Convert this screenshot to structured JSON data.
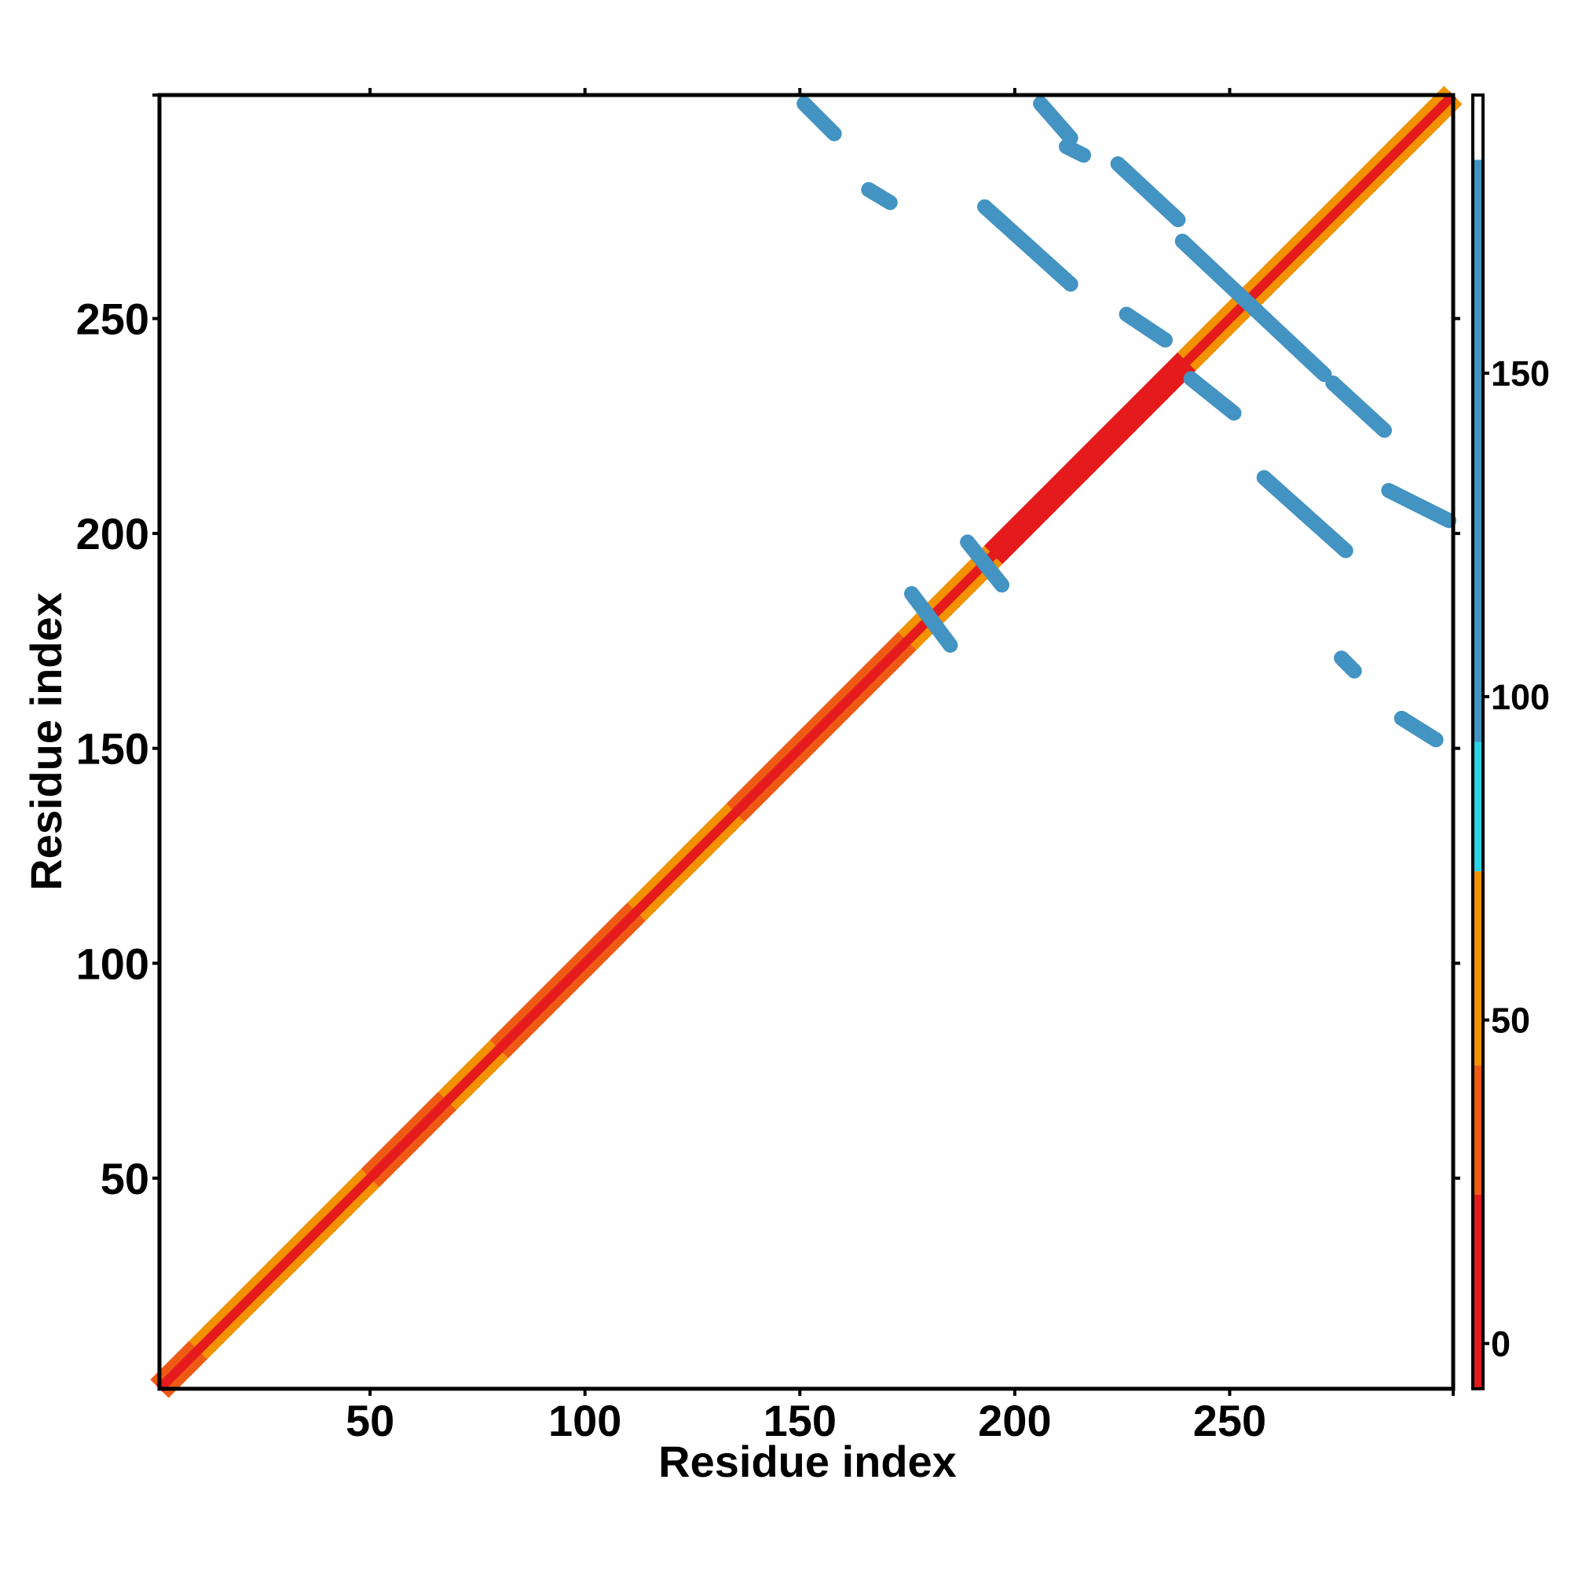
{
  "chart_data": {
    "type": "heatmap",
    "title": "",
    "xlabel": "Residue index",
    "ylabel": "Residue index",
    "xlim": [
      1,
      302
    ],
    "ylim": [
      1,
      302
    ],
    "x_ticks": [
      50,
      100,
      150,
      200,
      250
    ],
    "y_ticks": [
      50,
      100,
      150,
      200,
      250
    ],
    "colorbar": {
      "ticks": [
        0,
        50,
        100,
        150
      ],
      "range": [
        -7,
        193
      ],
      "bands": [
        {
          "from": -7,
          "to": 23,
          "color": "#e41a1c"
        },
        {
          "from": 23,
          "to": 43,
          "color": "#ee5a14"
        },
        {
          "from": 43,
          "to": 73,
          "color": "#f39200"
        },
        {
          "from": 73,
          "to": 93,
          "color": "#29d4e4"
        },
        {
          "from": 93,
          "to": 183,
          "color": "#4393c3"
        },
        {
          "from": 183,
          "to": 193,
          "color": "#ffffff"
        }
      ]
    },
    "diagonal": {
      "start": 1,
      "end": 302,
      "value": 0
    },
    "diagonal_regions": [
      {
        "from": 1,
        "to": 10,
        "value": 40
      },
      {
        "from": 10,
        "to": 50,
        "value": 55
      },
      {
        "from": 50,
        "to": 68,
        "value": 30
      },
      {
        "from": 68,
        "to": 80,
        "value": 55
      },
      {
        "from": 80,
        "to": 112,
        "value": 35
      },
      {
        "from": 112,
        "to": 135,
        "value": 55
      },
      {
        "from": 135,
        "to": 175,
        "value": 25
      },
      {
        "from": 175,
        "to": 195,
        "value": 60
      },
      {
        "from": 195,
        "to": 240,
        "value": 20
      },
      {
        "from": 240,
        "to": 302,
        "value": 50
      }
    ],
    "contacts": [
      {
        "x": [
          151,
          158
        ],
        "y": [
          300,
          293
        ],
        "value": 150
      },
      {
        "x": [
          166,
          171
        ],
        "y": [
          280,
          277
        ],
        "value": 150
      },
      {
        "x": [
          206,
          213
        ],
        "y": [
          300,
          292
        ],
        "value": 150
      },
      {
        "x": [
          212,
          216
        ],
        "y": [
          290,
          288
        ],
        "value": 95
      },
      {
        "x": [
          193,
          213
        ],
        "y": [
          276,
          258
        ],
        "value": 150
      },
      {
        "x": [
          224,
          238
        ],
        "y": [
          286,
          273
        ],
        "value": 150
      },
      {
        "x": [
          239,
          272
        ],
        "y": [
          268,
          237
        ],
        "value": 150
      },
      {
        "x": [
          226,
          235
        ],
        "y": [
          251,
          245
        ],
        "value": 150
      },
      {
        "x": [
          241,
          251
        ],
        "y": [
          236,
          228
        ],
        "value": 150
      },
      {
        "x": [
          274,
          286
        ],
        "y": [
          235,
          224
        ],
        "value": 150
      },
      {
        "x": [
          258,
          277
        ],
        "y": [
          213,
          196
        ],
        "value": 150
      },
      {
        "x": [
          287,
          301
        ],
        "y": [
          210,
          203
        ],
        "value": 150
      },
      {
        "x": [
          276,
          279
        ],
        "y": [
          171,
          168
        ],
        "value": 150
      },
      {
        "x": [
          290,
          298
        ],
        "y": [
          157,
          152
        ],
        "value": 150
      },
      {
        "x": [
          176,
          185
        ],
        "y": [
          186,
          174
        ],
        "value": 95
      },
      {
        "x": [
          189,
          197
        ],
        "y": [
          198,
          188
        ],
        "value": 95
      }
    ]
  }
}
